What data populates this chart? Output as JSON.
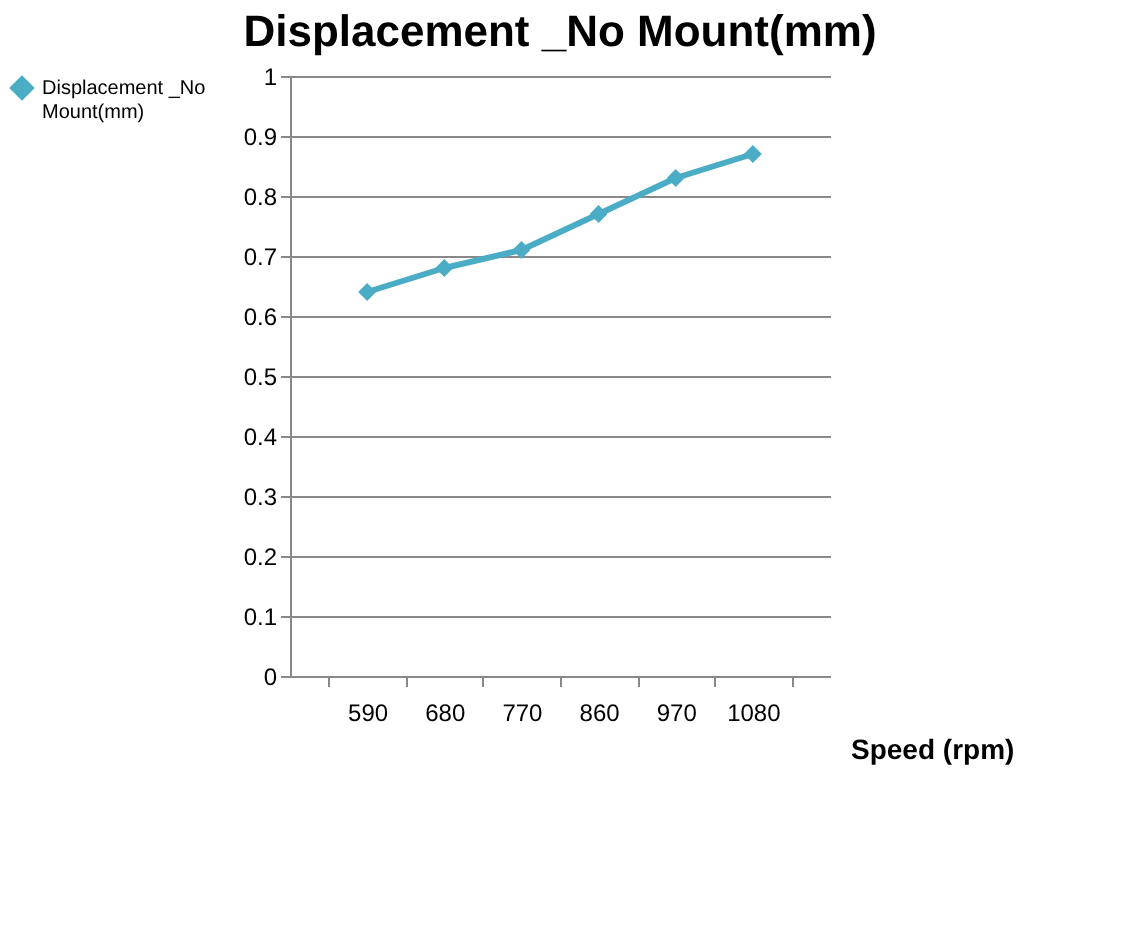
{
  "chart_data": {
    "type": "line",
    "title": "Displacement _No Mount(mm)",
    "xlabel": "Speed (rpm)",
    "categories": [
      "590",
      "680",
      "770",
      "860",
      "970",
      "1080"
    ],
    "series": [
      {
        "name": "Displacement _No Mount(mm)",
        "color": "#4bacc6",
        "values": [
          0.64,
          0.68,
          0.71,
          0.77,
          0.83,
          0.87
        ]
      }
    ],
    "ylim": [
      0,
      1
    ],
    "yticks": [
      0,
      0.1,
      0.2,
      0.3,
      0.4,
      0.5,
      0.6,
      0.7,
      0.8,
      0.9,
      1
    ],
    "grid": "y",
    "legend": "left",
    "marker": "diamond",
    "line_style": "solid"
  }
}
